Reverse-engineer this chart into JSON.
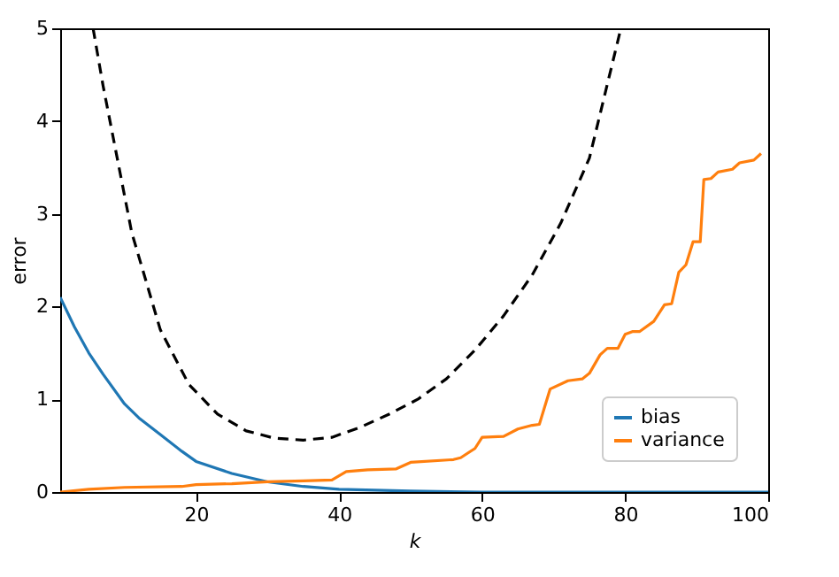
{
  "chart_data": {
    "type": "line",
    "xlabel": "k",
    "ylabel": "error",
    "xlim": [
      1,
      100
    ],
    "ylim": [
      0,
      5
    ],
    "xticks": [
      20,
      40,
      60,
      80,
      100
    ],
    "yticks": [
      0,
      1,
      2,
      3,
      4,
      5
    ],
    "grid": false,
    "legend": "bottom right",
    "marker": "none",
    "series": [
      {
        "name": "bias",
        "color": "#1f77b4",
        "line_style": "solid",
        "x": [
          1,
          3,
          5,
          7,
          10,
          12,
          15,
          18,
          20,
          25,
          30,
          35,
          40,
          45,
          50,
          60,
          70,
          80,
          90,
          100
        ],
        "values": [
          2.1,
          1.78,
          1.5,
          1.27,
          0.95,
          0.8,
          0.62,
          0.44,
          0.33,
          0.2,
          0.11,
          0.06,
          0.03,
          0.02,
          0.01,
          0.0,
          0.0,
          0.0,
          0.0,
          0.0
        ]
      },
      {
        "name": "variance",
        "color": "#ff7f0e",
        "line_style": "solid",
        "x": [
          1,
          5,
          10,
          18,
          20,
          25,
          30,
          35,
          39,
          41,
          44,
          48,
          50,
          56,
          57,
          59,
          60,
          63,
          65,
          67,
          68,
          69.5,
          72,
          74,
          75,
          76.5,
          77.5,
          79,
          80,
          81,
          82,
          84,
          85.5,
          86.5,
          87.5,
          88.5,
          89.5,
          90.5,
          91,
          92,
          93,
          95,
          96,
          98,
          99
        ],
        "values": [
          0,
          0.03,
          0.05,
          0.06,
          0.08,
          0.09,
          0.11,
          0.12,
          0.13,
          0.22,
          0.24,
          0.25,
          0.32,
          0.35,
          0.37,
          0.47,
          0.59,
          0.6,
          0.68,
          0.72,
          0.73,
          1.11,
          1.2,
          1.22,
          1.28,
          1.48,
          1.55,
          1.55,
          1.7,
          1.73,
          1.73,
          1.84,
          2.02,
          2.03,
          2.37,
          2.45,
          2.7,
          2.7,
          3.37,
          3.38,
          3.45,
          3.48,
          3.55,
          3.58,
          3.65
        ]
      },
      {
        "color": "#000000",
        "line_style": "dashed",
        "x": [
          5.6,
          7,
          11,
          15,
          19,
          23,
          27,
          31,
          35,
          39,
          43,
          47,
          51,
          55,
          59,
          63,
          67,
          71,
          75,
          79.4
        ],
        "values": [
          5,
          4.38,
          2.8,
          1.75,
          1.16,
          0.84,
          0.66,
          0.58,
          0.56,
          0.59,
          0.7,
          0.84,
          1.0,
          1.22,
          1.53,
          1.9,
          2.34,
          2.9,
          3.6,
          5
        ]
      }
    ]
  }
}
